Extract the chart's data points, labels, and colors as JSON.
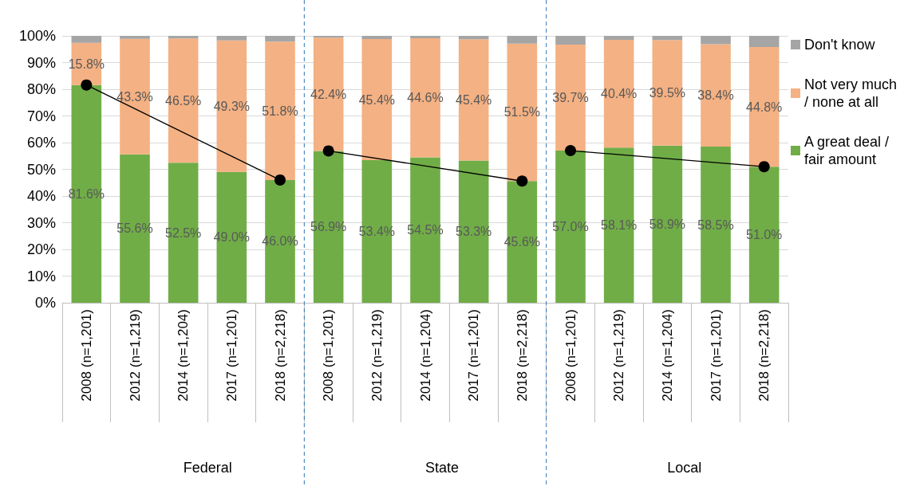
{
  "chart_data": {
    "type": "bar",
    "stacked": true,
    "categories": [
      "2008 (n=1,201)",
      "2012 (n=1,219)",
      "2014 (n=1,204)",
      "2017 (n=1,201)",
      "2018 (n=2,218)",
      "2008 (n=1,201)",
      "2012 (n=1,219)",
      "2014 (n=1,204)",
      "2017 (n=1,201)",
      "2018 (n=2,218)",
      "2008 (n=1,201)",
      "2012 (n=1,219)",
      "2014 (n=1,204)",
      "2017 (n=1,201)",
      "2018 (n=2,218)"
    ],
    "series": [
      {
        "name": "A great deal / fair amount",
        "color": "#70ad47",
        "values": [
          81.6,
          55.6,
          52.5,
          49.0,
          46.0,
          56.9,
          53.4,
          54.5,
          53.3,
          45.6,
          57.0,
          58.1,
          58.9,
          58.5,
          51.0
        ],
        "value_labels": [
          "81.6%",
          "55.6%",
          "52.5%",
          "49.0%",
          "46.0%",
          "56.9%",
          "53.4%",
          "54.5%",
          "53.3%",
          "45.6%",
          "57.0%",
          "58.1%",
          "58.9%",
          "58.5%",
          "51.0%"
        ]
      },
      {
        "name": "Not very much / none at all",
        "color": "#f4b183",
        "values": [
          15.8,
          43.3,
          46.5,
          49.3,
          51.8,
          42.4,
          45.4,
          44.6,
          45.4,
          51.5,
          39.7,
          40.4,
          39.5,
          38.4,
          44.8
        ],
        "value_labels": [
          "15.8%",
          "43.3%",
          "46.5%",
          "49.3%",
          "51.8%",
          "42.4%",
          "45.4%",
          "44.6%",
          "45.4%",
          "51.5%",
          "39.7%",
          "40.4%",
          "39.5%",
          "38.4%",
          "44.8%"
        ]
      },
      {
        "name": "Don't know",
        "color": "#a5a5a5",
        "values": [
          2.6,
          1.1,
          1.0,
          1.7,
          2.2,
          0.7,
          1.2,
          0.9,
          1.3,
          2.9,
          3.3,
          1.5,
          1.6,
          3.1,
          4.2
        ]
      },
      {
        "type": "line",
        "color": "#000000",
        "values": [
          81.6,
          null,
          null,
          null,
          46.0,
          null,
          null,
          null,
          null,
          null,
          null,
          null,
          null,
          null,
          null
        ]
      },
      {
        "type": "line",
        "color": "#000000",
        "values": [
          null,
          null,
          null,
          null,
          null,
          56.9,
          null,
          null,
          null,
          45.6,
          null,
          null,
          null,
          null,
          null
        ]
      },
      {
        "type": "line",
        "color": "#000000",
        "values": [
          null,
          null,
          null,
          null,
          null,
          null,
          null,
          null,
          null,
          null,
          57.0,
          null,
          null,
          null,
          51.0
        ]
      }
    ],
    "marker": "circle",
    "ylim": [
      0,
      100
    ],
    "yticks": [
      {
        "value": 0,
        "label": "0%"
      },
      {
        "value": 10,
        "label": "10%"
      },
      {
        "value": 20,
        "label": "20%"
      },
      {
        "value": 30,
        "label": "30%"
      },
      {
        "value": 40,
        "label": "40%"
      },
      {
        "value": 50,
        "label": "50%"
      },
      {
        "value": 60,
        "label": "60%"
      },
      {
        "value": 70,
        "label": "70%"
      },
      {
        "value": 80,
        "label": "80%"
      },
      {
        "value": 90,
        "label": "90%"
      },
      {
        "value": 100,
        "label": "100%"
      }
    ],
    "grid": "y",
    "legend": "right",
    "annotations": [
      "Federal",
      "State",
      "Local"
    ]
  }
}
